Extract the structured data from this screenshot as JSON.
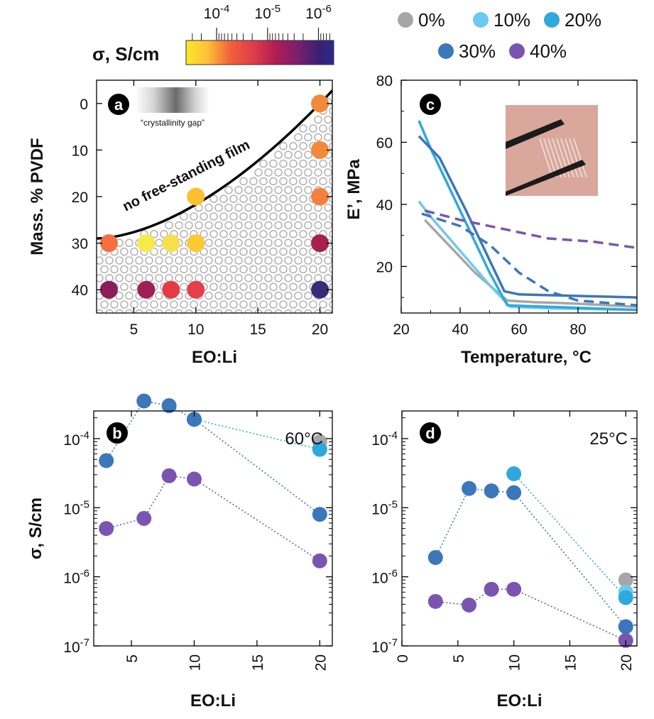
{
  "colorbar": {
    "label": "σ, S/cm",
    "tick_labels": [
      "10-4",
      "10-5",
      "10-6"
    ],
    "log_range": [
      -3.4,
      -6.3
    ],
    "colors": [
      "#fde725",
      "#fca636",
      "#f2603a",
      "#e03f4a",
      "#b31d54",
      "#7b1f6c",
      "#3b1f74",
      "#2b2a8c"
    ]
  },
  "legend": {
    "entries": [
      {
        "label": "0%",
        "color": "#a6a6a6"
      },
      {
        "label": "10%",
        "color": "#6ec9f0"
      },
      {
        "label": "20%",
        "color": "#2fa9dc"
      },
      {
        "label": "30%",
        "color": "#3b77ba"
      },
      {
        "label": "40%",
        "color": "#7a55b0"
      }
    ]
  },
  "chart_data": [
    {
      "panel": "a",
      "type": "scatter",
      "xlabel": "EO:Li",
      "ylabel": "Mass. % PVDF",
      "xlim": [
        2,
        21
      ],
      "ylim": [
        45,
        -5
      ],
      "xticks": [
        "5",
        "10",
        "15",
        "20"
      ],
      "yticks": [
        "0",
        "10",
        "20",
        "30",
        "40"
      ],
      "annotations": {
        "boundary_label": "no free-standing film",
        "gap_label": "“crystallinity gap”"
      },
      "points": [
        {
          "x": 20,
          "y": 0,
          "color": "#f28a3a"
        },
        {
          "x": 20,
          "y": 10,
          "color": "#f5893a"
        },
        {
          "x": 10,
          "y": 20,
          "color": "#fbc02d"
        },
        {
          "x": 20,
          "y": 20,
          "color": "#f5803d"
        },
        {
          "x": 3,
          "y": 30,
          "color": "#f5703e"
        },
        {
          "x": 6,
          "y": 30,
          "color": "#f6e94a"
        },
        {
          "x": 8,
          "y": 30,
          "color": "#f6df4a"
        },
        {
          "x": 10,
          "y": 30,
          "color": "#fbc930"
        },
        {
          "x": 20,
          "y": 30,
          "color": "#a8204d"
        },
        {
          "x": 3,
          "y": 40,
          "color": "#8b1e57"
        },
        {
          "x": 6,
          "y": 40,
          "color": "#9e1f55"
        },
        {
          "x": 8,
          "y": 40,
          "color": "#e33c46"
        },
        {
          "x": 10,
          "y": 40,
          "color": "#e3404b"
        },
        {
          "x": 20,
          "y": 40,
          "color": "#3b2a78"
        }
      ]
    },
    {
      "panel": "c",
      "type": "line",
      "xlabel": "Temperature, °C",
      "ylabel": "E’, MPa",
      "xlim": [
        20,
        100
      ],
      "ylim": [
        5,
        80
      ],
      "xticks": [
        "20",
        "40",
        "60",
        "80"
      ],
      "yticks": [
        "20",
        "40",
        "60",
        "80"
      ],
      "series": [
        {
          "name": "0%",
          "color": "#a6a6a6",
          "dash": false,
          "x": [
            28,
            35,
            45,
            56,
            65,
            80,
            100
          ],
          "y": [
            35,
            28,
            18,
            9,
            8.5,
            8,
            7
          ]
        },
        {
          "name": "10%",
          "color": "#6ec9f0",
          "dash": false,
          "x": [
            26,
            30,
            40,
            50,
            57,
            70,
            100
          ],
          "y": [
            41,
            36,
            25,
            14,
            7,
            6.5,
            6
          ]
        },
        {
          "name": "20%",
          "color": "#2fa9dc",
          "dash": false,
          "x": [
            26,
            30,
            40,
            50,
            56,
            70,
            100
          ],
          "y": [
            67,
            58,
            38,
            18,
            7.5,
            7,
            6
          ]
        },
        {
          "name": "30%",
          "color": "#3b77ba",
          "dash": false,
          "x": [
            26,
            33,
            42,
            50,
            55,
            60,
            100
          ],
          "y": [
            62,
            55,
            38,
            22,
            12,
            11,
            10
          ]
        },
        {
          "name": "30%",
          "color": "#3b77ba",
          "dash": true,
          "x": [
            27,
            40,
            50,
            60,
            70,
            80,
            100
          ],
          "y": [
            37,
            33,
            27,
            18,
            12,
            9,
            7.5
          ]
        },
        {
          "name": "40%",
          "color": "#7a55b0",
          "dash": true,
          "x": [
            28,
            40,
            55,
            70,
            85,
            100
          ],
          "y": [
            38,
            35,
            32,
            29,
            28,
            26
          ]
        }
      ]
    },
    {
      "panel": "b",
      "type": "scatter",
      "annotation": "60°C",
      "xlabel": "EO:Li",
      "ylabel": "σ, S/cm",
      "xlim": [
        2,
        21
      ],
      "ylog": [
        -7,
        -3.6
      ],
      "xticks": [
        "5",
        "10",
        "15",
        "20"
      ],
      "yticks": [
        "10-4",
        "10-5",
        "10-6",
        "10-7"
      ],
      "series": [
        {
          "name": "0%",
          "color": "#a6a6a6",
          "x": [
            20
          ],
          "y": [
            9e-05
          ]
        },
        {
          "name": "10%",
          "color": "#6ec9f0",
          "x": [
            20
          ],
          "y": [
            7e-05
          ]
        },
        {
          "name": "20%",
          "color": "#2fa9dc",
          "x": [
            10,
            20
          ],
          "y": [
            0.00019,
            7e-05
          ]
        },
        {
          "name": "30%",
          "color": "#3b77ba",
          "x": [
            3,
            6,
            8,
            10,
            20
          ],
          "y": [
            4.8e-05,
            0.00035,
            0.0003,
            0.00019,
            8e-06
          ]
        },
        {
          "name": "40%",
          "color": "#7a55b0",
          "x": [
            3,
            6,
            8,
            10,
            20
          ],
          "y": [
            5e-06,
            7e-06,
            2.9e-05,
            2.6e-05,
            1.7e-06
          ]
        }
      ]
    },
    {
      "panel": "d",
      "type": "scatter",
      "annotation": "25°C",
      "xlabel": "EO:Li",
      "ylabel": "",
      "xlim": [
        0,
        21
      ],
      "ylog": [
        -7,
        -3.6
      ],
      "xticks": [
        "0",
        "5",
        "10",
        "15",
        "20"
      ],
      "yticks": [
        "10-4",
        "10-5",
        "10-6",
        "10-7"
      ],
      "series": [
        {
          "name": "0%",
          "color": "#a6a6a6",
          "x": [
            20
          ],
          "y": [
            9e-07
          ]
        },
        {
          "name": "10%",
          "color": "#6ec9f0",
          "x": [
            20
          ],
          "y": [
            6e-07
          ]
        },
        {
          "name": "20%",
          "color": "#2fa9dc",
          "x": [
            10,
            20
          ],
          "y": [
            3.1e-05,
            5e-07
          ]
        },
        {
          "name": "30%",
          "color": "#3b77ba",
          "x": [
            3,
            6,
            8,
            10,
            20
          ],
          "y": [
            1.9e-06,
            1.9e-05,
            1.75e-05,
            1.65e-05,
            1.9e-07
          ]
        },
        {
          "name": "40%",
          "color": "#7a55b0",
          "x": [
            3,
            6,
            8,
            10,
            20
          ],
          "y": [
            4.4e-07,
            3.9e-07,
            6.6e-07,
            6.6e-07,
            1.2e-07
          ]
        }
      ]
    }
  ]
}
